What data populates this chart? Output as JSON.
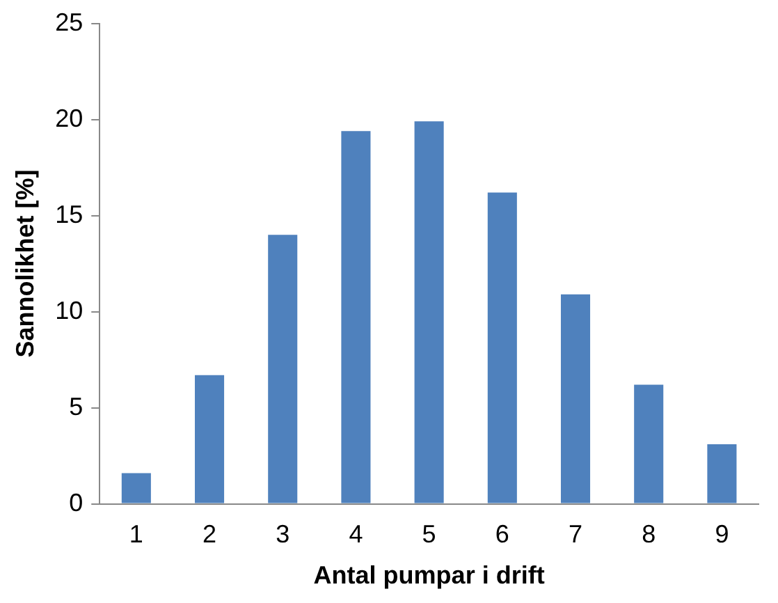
{
  "chart_data": {
    "type": "bar",
    "xlabel": "Antal pumpar i drift",
    "ylabel": "Sannolikhet [%]",
    "categories": [
      "1",
      "2",
      "3",
      "4",
      "5",
      "6",
      "7",
      "8",
      "9"
    ],
    "values": [
      1.6,
      6.7,
      14.0,
      19.4,
      19.9,
      16.2,
      10.9,
      6.2,
      3.1
    ],
    "color": "#4f81bd",
    "ylim": [
      0,
      25
    ],
    "yticks": [
      0,
      5,
      10,
      15,
      20,
      25
    ],
    "grid": false,
    "legend": false
  }
}
